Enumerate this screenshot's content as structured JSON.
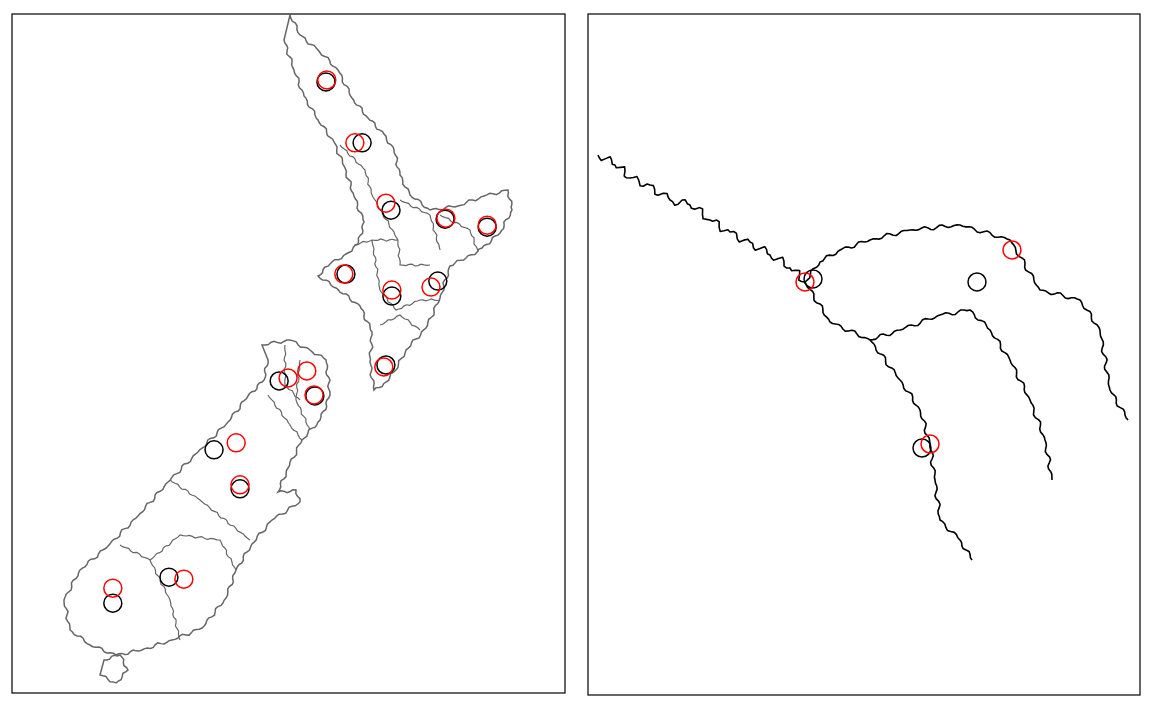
{
  "chart_data": [
    {
      "type": "scatter",
      "xlim": [
        166,
        179
      ],
      "ylim": [
        -47.6,
        -34
      ],
      "tick_labels": false,
      "marker": "circle",
      "series": [
        {
          "color": "#000000",
          "x": [
            173.38,
            174.23,
            174.91,
            176.18,
            177.17,
            173.85,
            174.93,
            176.01,
            174.79,
            172.28,
            173.12,
            170.75,
            171.36,
            169.69,
            168.37
          ],
          "values": [
            -35.36,
            -36.58,
            -37.93,
            -38.11,
            -38.27,
            -39.21,
            -39.65,
            -39.35,
            -41.03,
            -41.35,
            -41.65,
            -42.73,
            -43.51,
            -45.28,
            -45.8
          ]
        },
        {
          "color": "#ff0000",
          "x": [
            173.4,
            174.06,
            174.79,
            176.2,
            177.17,
            173.8,
            174.93,
            175.85,
            174.74,
            172.49,
            172.93,
            173.1,
            171.27,
            171.36,
            170.04,
            168.37
          ],
          "values": [
            -35.32,
            -36.58,
            -37.79,
            -38.09,
            -38.23,
            -39.21,
            -39.53,
            -39.47,
            -41.07,
            -41.29,
            -41.15,
            -41.63,
            -42.59,
            -43.43,
            -45.32,
            -45.5
          ]
        }
      ]
    },
    {
      "type": "scatter",
      "xlim": [
        0,
        100
      ],
      "ylim": [
        0,
        100
      ],
      "tick_labels": false,
      "marker": "circle",
      "series": [
        {
          "color": "#000000",
          "x": [
            40.76,
            70.47,
            60.51
          ],
          "values": [
            61.09,
            60.65,
            36.27
          ]
        },
        {
          "color": "#ff0000",
          "x": [
            39.31,
            76.81,
            61.96
          ],
          "values": [
            60.65,
            65.35,
            36.86
          ]
        }
      ]
    }
  ]
}
